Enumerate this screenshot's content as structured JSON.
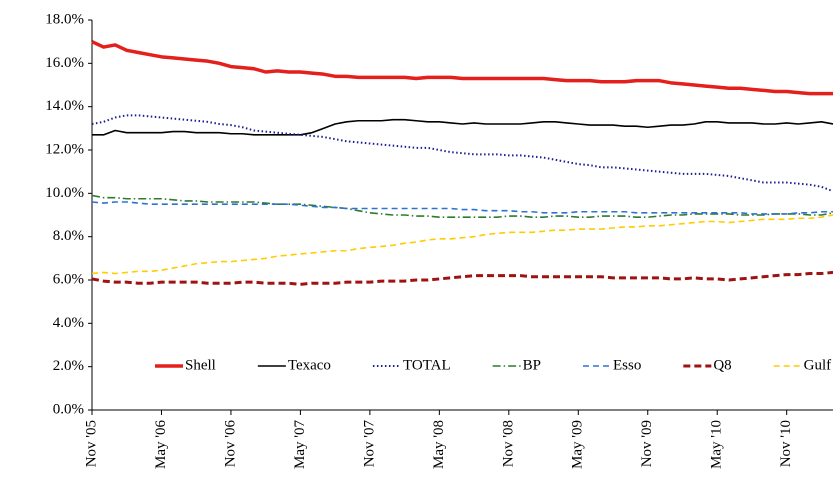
{
  "chart_data": {
    "type": "line",
    "categories": [
      "Nov '05",
      null,
      null,
      null,
      null,
      null,
      "May '06",
      null,
      null,
      null,
      null,
      null,
      "Nov '06",
      null,
      null,
      null,
      null,
      null,
      "May '07",
      null,
      null,
      null,
      null,
      null,
      "Nov '07",
      null,
      null,
      null,
      null,
      null,
      "May '08",
      null,
      null,
      null,
      null,
      null,
      "Nov '08",
      null,
      null,
      null,
      null,
      null,
      "May '09",
      null,
      null,
      null,
      null,
      null,
      "Nov '09",
      null,
      null,
      null,
      null,
      null,
      "May '10",
      null,
      null,
      null,
      null,
      null,
      "Nov '10",
      null,
      null,
      null,
      null
    ],
    "ylim": [
      0,
      18
    ],
    "yticks": [
      {
        "value": 0,
        "label": "0.0%"
      },
      {
        "value": 2,
        "label": "2.0%"
      },
      {
        "value": 4,
        "label": "4.0%"
      },
      {
        "value": 6,
        "label": "6.0%"
      },
      {
        "value": 8,
        "label": "8.0%"
      },
      {
        "value": 10,
        "label": "10.0%"
      },
      {
        "value": 12,
        "label": "12.0%"
      },
      {
        "value": 14,
        "label": "14.0%"
      },
      {
        "value": 16,
        "label": "16.0%"
      },
      {
        "value": 18,
        "label": "18.0%"
      }
    ],
    "grid": false,
    "legend": "lower center",
    "series": [
      {
        "name": "Shell",
        "color": "#e3201b",
        "style": "solid-thick",
        "values": [
          17.0,
          16.75,
          16.85,
          16.6,
          16.5,
          16.4,
          16.3,
          16.25,
          16.2,
          16.15,
          16.1,
          16.0,
          15.85,
          15.8,
          15.75,
          15.6,
          15.65,
          15.6,
          15.6,
          15.55,
          15.5,
          15.4,
          15.4,
          15.35,
          15.35,
          15.35,
          15.35,
          15.35,
          15.3,
          15.35,
          15.35,
          15.35,
          15.3,
          15.3,
          15.3,
          15.3,
          15.3,
          15.3,
          15.3,
          15.3,
          15.25,
          15.2,
          15.2,
          15.2,
          15.15,
          15.15,
          15.15,
          15.2,
          15.2,
          15.2,
          15.1,
          15.05,
          15.0,
          14.95,
          14.9,
          14.85,
          14.85,
          14.8,
          14.75,
          14.7,
          14.7,
          14.65,
          14.6,
          14.6,
          14.6
        ]
      },
      {
        "name": "Texaco",
        "color": "#000000",
        "style": "solid",
        "values": [
          12.7,
          12.7,
          12.9,
          12.8,
          12.8,
          12.8,
          12.8,
          12.85,
          12.85,
          12.8,
          12.8,
          12.8,
          12.75,
          12.75,
          12.7,
          12.7,
          12.7,
          12.7,
          12.7,
          12.8,
          13.0,
          13.2,
          13.3,
          13.35,
          13.35,
          13.35,
          13.4,
          13.4,
          13.35,
          13.3,
          13.3,
          13.25,
          13.2,
          13.25,
          13.2,
          13.2,
          13.2,
          13.2,
          13.25,
          13.3,
          13.3,
          13.25,
          13.2,
          13.15,
          13.15,
          13.15,
          13.1,
          13.1,
          13.05,
          13.1,
          13.15,
          13.15,
          13.2,
          13.3,
          13.3,
          13.25,
          13.25,
          13.25,
          13.2,
          13.2,
          13.25,
          13.2,
          13.25,
          13.3,
          13.2
        ]
      },
      {
        "name": "TOTAL",
        "color": "#1c1c8f",
        "style": "dotted",
        "values": [
          13.2,
          13.3,
          13.5,
          13.6,
          13.6,
          13.55,
          13.5,
          13.45,
          13.4,
          13.35,
          13.3,
          13.2,
          13.15,
          13.05,
          12.9,
          12.85,
          12.8,
          12.75,
          12.7,
          12.65,
          12.6,
          12.5,
          12.4,
          12.35,
          12.3,
          12.25,
          12.2,
          12.15,
          12.1,
          12.1,
          12.0,
          11.9,
          11.85,
          11.8,
          11.8,
          11.8,
          11.75,
          11.75,
          11.7,
          11.65,
          11.55,
          11.45,
          11.35,
          11.3,
          11.2,
          11.2,
          11.15,
          11.1,
          11.05,
          11.0,
          10.95,
          10.9,
          10.9,
          10.9,
          10.85,
          10.8,
          10.7,
          10.6,
          10.5,
          10.5,
          10.5,
          10.45,
          10.4,
          10.3,
          10.1
        ]
      },
      {
        "name": "BP",
        "color": "#2e7a2e",
        "style": "dashdot",
        "values": [
          9.9,
          9.8,
          9.8,
          9.75,
          9.75,
          9.75,
          9.75,
          9.7,
          9.65,
          9.65,
          9.6,
          9.6,
          9.6,
          9.6,
          9.6,
          9.55,
          9.5,
          9.5,
          9.5,
          9.45,
          9.4,
          9.35,
          9.3,
          9.2,
          9.1,
          9.05,
          9.0,
          9.0,
          8.95,
          8.95,
          8.9,
          8.9,
          8.9,
          8.9,
          8.9,
          8.9,
          8.95,
          8.95,
          8.9,
          8.9,
          8.95,
          8.95,
          8.9,
          8.9,
          8.95,
          8.95,
          8.95,
          8.9,
          8.9,
          8.95,
          9.0,
          9.0,
          9.05,
          9.05,
          9.05,
          9.05,
          9.0,
          9.0,
          9.0,
          9.05,
          9.05,
          9.05,
          9.0,
          9.0,
          9.1
        ]
      },
      {
        "name": "Esso",
        "color": "#2f72d6",
        "style": "dashed",
        "values": [
          9.6,
          9.55,
          9.6,
          9.6,
          9.55,
          9.5,
          9.5,
          9.5,
          9.5,
          9.5,
          9.5,
          9.5,
          9.5,
          9.5,
          9.5,
          9.5,
          9.5,
          9.5,
          9.45,
          9.4,
          9.35,
          9.35,
          9.3,
          9.3,
          9.3,
          9.3,
          9.3,
          9.3,
          9.3,
          9.3,
          9.3,
          9.3,
          9.25,
          9.25,
          9.2,
          9.2,
          9.2,
          9.15,
          9.15,
          9.1,
          9.1,
          9.1,
          9.15,
          9.15,
          9.15,
          9.15,
          9.15,
          9.1,
          9.1,
          9.1,
          9.1,
          9.1,
          9.1,
          9.1,
          9.1,
          9.1,
          9.1,
          9.05,
          9.05,
          9.05,
          9.05,
          9.1,
          9.1,
          9.15,
          9.15
        ]
      },
      {
        "name": "Q8",
        "color": "#a01212",
        "style": "dashed-thick",
        "values": [
          6.05,
          5.95,
          5.9,
          5.9,
          5.85,
          5.85,
          5.9,
          5.9,
          5.9,
          5.9,
          5.85,
          5.85,
          5.85,
          5.9,
          5.9,
          5.85,
          5.85,
          5.85,
          5.8,
          5.85,
          5.85,
          5.85,
          5.9,
          5.9,
          5.9,
          5.95,
          5.95,
          5.95,
          6.0,
          6.0,
          6.05,
          6.1,
          6.15,
          6.2,
          6.2,
          6.2,
          6.2,
          6.2,
          6.15,
          6.15,
          6.15,
          6.15,
          6.15,
          6.15,
          6.15,
          6.1,
          6.1,
          6.1,
          6.1,
          6.1,
          6.05,
          6.05,
          6.1,
          6.05,
          6.05,
          6.0,
          6.05,
          6.1,
          6.15,
          6.2,
          6.25,
          6.25,
          6.3,
          6.3,
          6.35
        ]
      },
      {
        "name": "Gulf",
        "color": "#ffcc00",
        "style": "dashed",
        "values": [
          6.3,
          6.35,
          6.3,
          6.35,
          6.4,
          6.4,
          6.45,
          6.55,
          6.65,
          6.75,
          6.8,
          6.85,
          6.85,
          6.9,
          6.95,
          7.0,
          7.1,
          7.15,
          7.2,
          7.25,
          7.3,
          7.35,
          7.35,
          7.45,
          7.5,
          7.55,
          7.6,
          7.7,
          7.75,
          7.85,
          7.9,
          7.9,
          7.95,
          8.0,
          8.1,
          8.15,
          8.2,
          8.2,
          8.2,
          8.25,
          8.3,
          8.3,
          8.35,
          8.35,
          8.35,
          8.4,
          8.45,
          8.45,
          8.5,
          8.5,
          8.55,
          8.6,
          8.65,
          8.7,
          8.7,
          8.65,
          8.7,
          8.75,
          8.8,
          8.8,
          8.8,
          8.85,
          8.85,
          8.9,
          9.0
        ]
      }
    ]
  }
}
